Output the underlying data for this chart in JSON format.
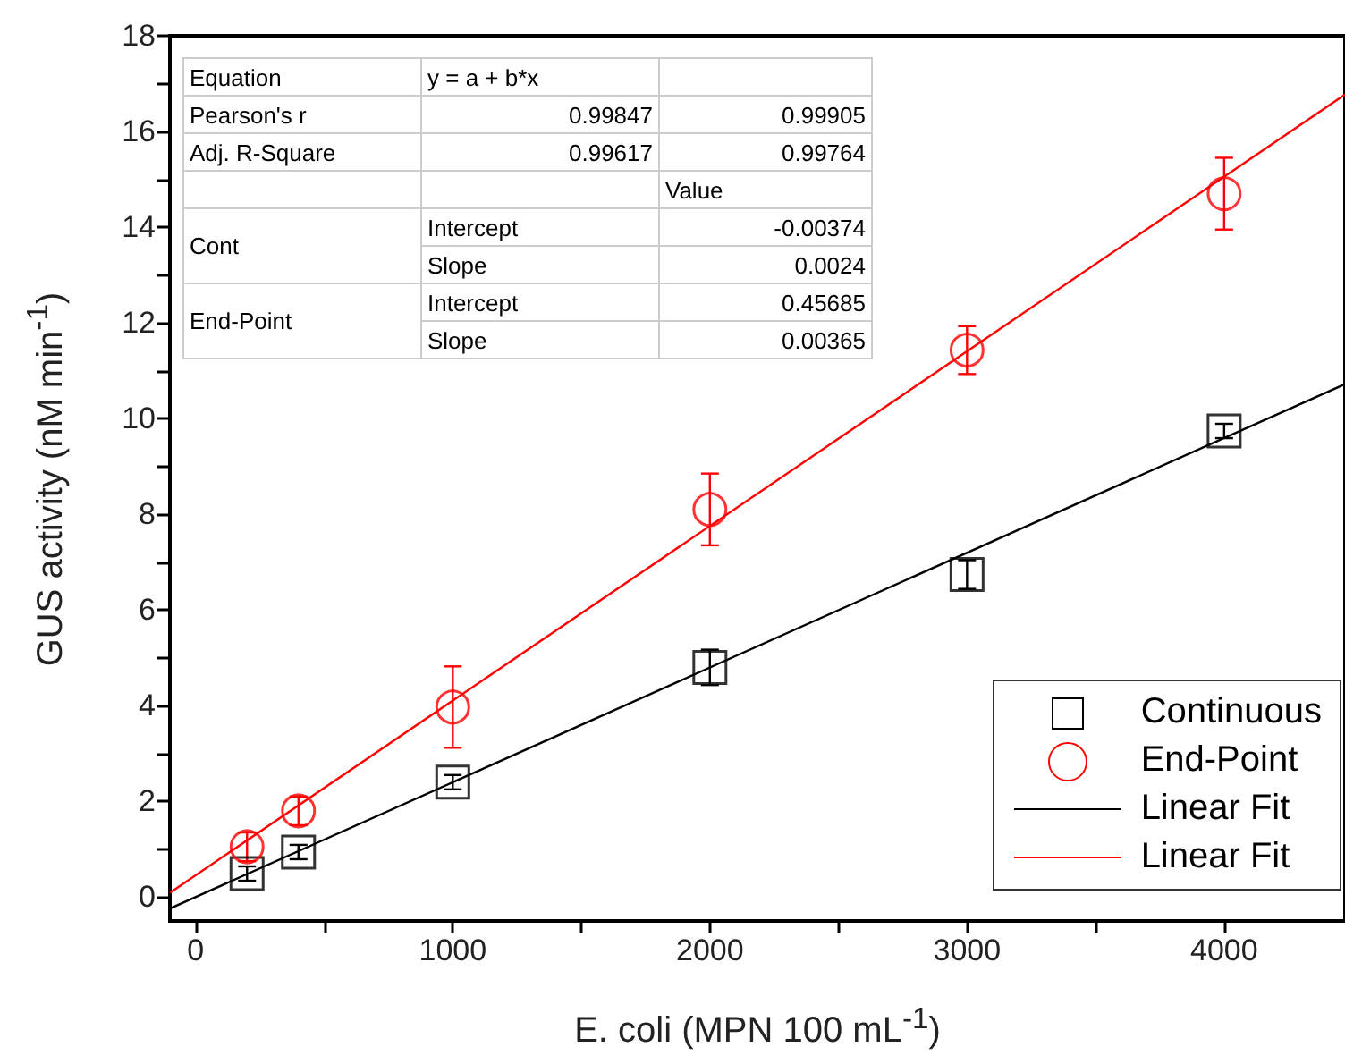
{
  "chart_data": {
    "type": "scatter",
    "xlabel": "E. coli (MPN 100 mL$^{-1}$)",
    "ylabel": "GUS activity (nM min$^{-1}$)",
    "annotations": [
      "Equation",
      "y = a + b*x",
      "Pearson's r",
      "0.99847",
      "0.99905",
      "Adj. R-Square",
      "0.99617",
      "0.99764",
      "Value",
      "Cont",
      "Intercept",
      "-0.00374",
      "Slope",
      "0.0024",
      "End-Point",
      "Intercept",
      "0.45685",
      "Slope",
      "0.00365"
    ],
    "xlim": [
      -100,
      4470
    ],
    "xticks": [
      0,
      {
        "value": 500,
        "label": null
      },
      1000,
      {
        "value": 1500,
        "label": null
      },
      2000,
      {
        "value": 2500,
        "label": null
      },
      3000,
      {
        "value": 3500,
        "label": null
      },
      4000
    ],
    "ylim": [
      -0.5,
      18
    ],
    "yticks": [
      0,
      {
        "value": 1,
        "label": null
      },
      2,
      {
        "value": 3,
        "label": null
      },
      4,
      {
        "value": 5,
        "label": null
      },
      6,
      {
        "value": 7,
        "label": null
      },
      8,
      {
        "value": 9,
        "label": null
      },
      10,
      {
        "value": 11,
        "label": null
      },
      12,
      {
        "value": 13,
        "label": null
      },
      14,
      {
        "value": 15,
        "label": null
      },
      16,
      {
        "value": 17,
        "label": null
      },
      18
    ],
    "legend": "bottom right",
    "grid": false,
    "series": [
      {
        "name": "Continuous",
        "type": "scatter",
        "marker": "square",
        "color": "#000000",
        "x": [
          200,
          400,
          1000,
          2000,
          3000,
          4000
        ],
        "values": [
          0.49,
          0.94,
          2.4,
          4.8,
          6.74,
          9.74
        ],
        "errors": [
          0.15,
          0.15,
          0.15,
          0.37,
          0.3,
          0.15
        ]
      },
      {
        "name": "End-Point",
        "type": "scatter",
        "marker": "circle",
        "color": "#ff0000",
        "x": [
          200,
          400,
          1000,
          2000,
          3000,
          4000
        ],
        "values": [
          1.05,
          1.8,
          3.97,
          8.1,
          11.43,
          14.7
        ],
        "errors": [
          0.3,
          0.3,
          0.85,
          0.75,
          0.5,
          0.75
        ]
      },
      {
        "name": "Linear Fit",
        "type": "line",
        "marker": "none",
        "color": "#000000",
        "x": [
          -100,
          4470
        ],
        "values": [
          -0.24,
          10.72
        ]
      },
      {
        "name": "Linear Fit",
        "type": "line",
        "marker": "none",
        "color": "#ff0000",
        "x": [
          -100,
          4470
        ],
        "values": [
          0.09,
          16.77
        ]
      }
    ]
  }
}
